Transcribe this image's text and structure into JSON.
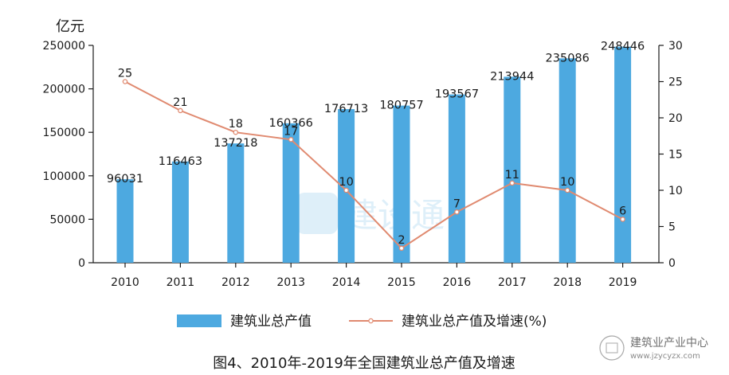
{
  "chart_data": {
    "type": "bar",
    "categories": [
      "2010",
      "2011",
      "2012",
      "2013",
      "2014",
      "2015",
      "2016",
      "2017",
      "2018",
      "2019"
    ],
    "series": [
      {
        "name": "建筑业总产值",
        "type": "bar",
        "axis": "left",
        "color": "#4da9e0",
        "values": [
          96031,
          116463,
          137218,
          160366,
          176713,
          180757,
          193567,
          213944,
          235086,
          248446
        ],
        "labels": [
          "96031",
          "116463",
          "137218",
          "160366",
          "176713",
          "180757",
          "193567",
          "213944",
          "235086",
          "248446"
        ]
      },
      {
        "name": "建筑业总产值及增速(%)",
        "type": "line",
        "axis": "right",
        "color": "#e08a70",
        "values": [
          25,
          21,
          18,
          17,
          10,
          2,
          7,
          11,
          10,
          6
        ],
        "labels": [
          "25",
          "21",
          "18",
          "17",
          "10",
          "2",
          "7",
          "11",
          "10",
          "6"
        ]
      }
    ],
    "left_axis": {
      "unit_label": "亿元",
      "range": [
        0,
        250000
      ],
      "ticks": [
        "0",
        "50000",
        "100000",
        "150000",
        "200000",
        "250000"
      ]
    },
    "right_axis": {
      "range": [
        0,
        30
      ],
      "ticks": [
        "0",
        "5",
        "10",
        "15",
        "20",
        "25",
        "30"
      ]
    },
    "grid": false,
    "legend_position": "bottom",
    "caption": "图4、2010年-2019年全国建筑业总产值及增速"
  },
  "watermark": {
    "center_text": "建设通",
    "corner_name": "建筑业产业中心",
    "corner_url": "www.jzycyzx.com"
  }
}
